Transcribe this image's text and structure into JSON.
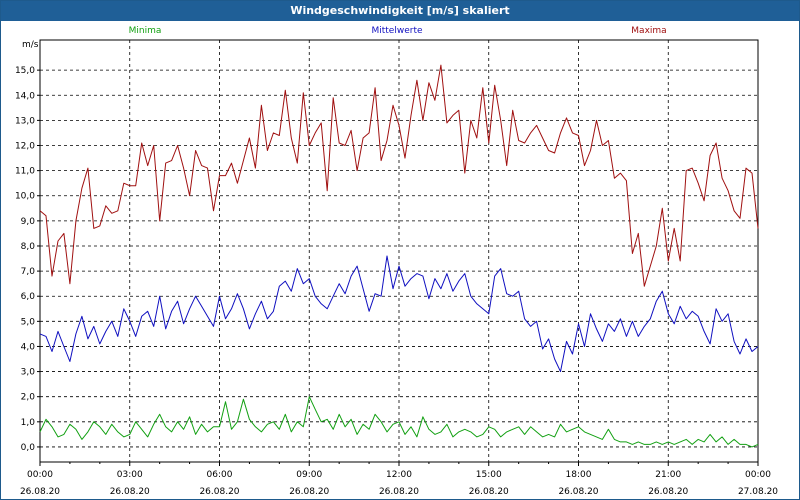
{
  "title": "Windgeschwindigkeit [m/s] skaliert",
  "chart_data": {
    "type": "line",
    "ylabel": "m/s",
    "ylim": [
      -0.6,
      16.2
    ],
    "yticks": [
      "0,0",
      "1,0",
      "2,0",
      "3,0",
      "4,0",
      "5,0",
      "6,0",
      "7,0",
      "8,0",
      "9,0",
      "10,0",
      "11,0",
      "12,0",
      "13,0",
      "14,0",
      "15,0"
    ],
    "xticks": [
      {
        "time": "00:00",
        "date": "26.08.20"
      },
      {
        "time": "03:00",
        "date": "26.08.20"
      },
      {
        "time": "06:00",
        "date": "26.08.20"
      },
      {
        "time": "09:00",
        "date": "26.08.20"
      },
      {
        "time": "12:00",
        "date": "26.08.20"
      },
      {
        "time": "15:00",
        "date": "26.08.20"
      },
      {
        "time": "18:00",
        "date": "26.08.20"
      },
      {
        "time": "21:00",
        "date": "26.08.20"
      },
      {
        "time": "00:00",
        "date": "27.08.20"
      }
    ],
    "x_hours": [
      0,
      0.2,
      0.4,
      0.6,
      0.8,
      1,
      1.2,
      1.4,
      1.6,
      1.8,
      2,
      2.2,
      2.4,
      2.6,
      2.8,
      3,
      3.2,
      3.4,
      3.6,
      3.8,
      4,
      4.2,
      4.4,
      4.6,
      4.8,
      5,
      5.2,
      5.4,
      5.6,
      5.8,
      6,
      6.2,
      6.4,
      6.6,
      6.8,
      7,
      7.2,
      7.4,
      7.6,
      7.8,
      8,
      8.2,
      8.4,
      8.6,
      8.8,
      9,
      9.2,
      9.4,
      9.6,
      9.8,
      10,
      10.2,
      10.4,
      10.6,
      10.8,
      11,
      11.2,
      11.4,
      11.6,
      11.8,
      12,
      12.2,
      12.4,
      12.6,
      12.8,
      13,
      13.2,
      13.4,
      13.6,
      13.8,
      14,
      14.2,
      14.4,
      14.6,
      14.8,
      15,
      15.2,
      15.4,
      15.6,
      15.8,
      16,
      16.2,
      16.4,
      16.6,
      16.8,
      17,
      17.2,
      17.4,
      17.6,
      17.8,
      18,
      18.2,
      18.4,
      18.6,
      18.8,
      19,
      19.2,
      19.4,
      19.6,
      19.8,
      20,
      20.2,
      20.4,
      20.6,
      20.8,
      21,
      21.2,
      21.4,
      21.6,
      21.8,
      22,
      22.2,
      22.4,
      22.6,
      22.8,
      23,
      23.2,
      23.4,
      23.6,
      23.8,
      24
    ],
    "series": [
      {
        "name": "Minima",
        "color": "#12a012",
        "values": [
          0.6,
          1.1,
          0.8,
          0.4,
          0.5,
          0.9,
          0.7,
          0.3,
          0.6,
          1.0,
          0.8,
          0.5,
          0.9,
          0.6,
          0.4,
          0.5,
          1.0,
          0.7,
          0.4,
          0.9,
          1.3,
          0.8,
          0.6,
          1.0,
          0.7,
          1.2,
          0.5,
          0.9,
          0.6,
          0.8,
          0.8,
          1.8,
          0.7,
          1.0,
          1.9,
          1.1,
          0.8,
          0.6,
          0.9,
          1.0,
          0.7,
          1.3,
          0.6,
          1.0,
          0.8,
          2.0,
          1.5,
          1.0,
          1.1,
          0.7,
          1.3,
          0.8,
          1.1,
          0.5,
          0.9,
          0.7,
          1.3,
          1.0,
          0.6,
          0.9,
          1.0,
          0.5,
          0.8,
          0.4,
          1.2,
          0.7,
          0.5,
          0.6,
          0.9,
          0.4,
          0.6,
          0.7,
          0.6,
          0.4,
          0.5,
          0.8,
          0.7,
          0.4,
          0.6,
          0.7,
          0.8,
          0.5,
          0.8,
          0.6,
          0.4,
          0.5,
          0.4,
          0.9,
          0.6,
          0.7,
          0.8,
          0.6,
          0.5,
          0.4,
          0.3,
          0.7,
          0.3,
          0.2,
          0.2,
          0.1,
          0.2,
          0.1,
          0.1,
          0.2,
          0.1,
          0.2,
          0.1,
          0.2,
          0.3,
          0.1,
          0.3,
          0.2,
          0.5,
          0.2,
          0.4,
          0.1,
          0.3,
          0.1,
          0.1,
          0.0,
          0.1
        ]
      },
      {
        "name": "Mittelwerte",
        "color": "#1010c0",
        "values": [
          4.5,
          4.4,
          3.8,
          4.6,
          4.0,
          3.4,
          4.5,
          5.2,
          4.3,
          4.8,
          4.1,
          4.6,
          5.0,
          4.4,
          5.5,
          5.0,
          4.4,
          5.2,
          5.4,
          4.8,
          6.0,
          4.7,
          5.4,
          5.8,
          4.9,
          5.5,
          6.0,
          5.6,
          5.2,
          4.8,
          6.0,
          5.1,
          5.5,
          6.1,
          5.5,
          4.7,
          5.3,
          5.8,
          5.1,
          5.4,
          6.4,
          6.6,
          6.2,
          7.1,
          6.5,
          6.7,
          6.0,
          5.7,
          5.5,
          6.0,
          6.5,
          6.1,
          6.8,
          7.2,
          6.3,
          5.4,
          6.1,
          6.0,
          7.6,
          6.3,
          7.2,
          6.4,
          6.7,
          6.9,
          6.8,
          5.9,
          6.7,
          6.3,
          6.9,
          6.2,
          6.6,
          6.9,
          6.0,
          5.7,
          5.5,
          5.3,
          6.8,
          7.1,
          6.1,
          6.0,
          6.2,
          5.1,
          4.8,
          5.0,
          3.9,
          4.3,
          3.5,
          3.0,
          4.2,
          3.7,
          4.9,
          4.0,
          5.3,
          4.7,
          4.2,
          4.9,
          4.6,
          5.1,
          4.4,
          5.0,
          4.4,
          4.8,
          5.1,
          5.8,
          6.2,
          5.3,
          4.9,
          5.6,
          5.1,
          5.4,
          5.2,
          4.6,
          4.1,
          5.5,
          5.0,
          5.3,
          4.2,
          3.7,
          4.3,
          3.8,
          4.0
        ]
      },
      {
        "name": "Maxima",
        "color": "#a01010",
        "values": [
          9.4,
          9.2,
          6.8,
          8.2,
          8.5,
          6.5,
          9.0,
          10.3,
          11.1,
          8.7,
          8.8,
          9.6,
          9.3,
          9.4,
          10.5,
          10.4,
          10.4,
          12.1,
          11.2,
          12.0,
          9.0,
          11.3,
          11.4,
          12.0,
          11.1,
          10.0,
          11.8,
          11.2,
          11.1,
          9.4,
          10.8,
          10.8,
          11.3,
          10.5,
          11.4,
          12.3,
          11.1,
          13.6,
          11.8,
          12.5,
          12.4,
          14.2,
          12.3,
          11.3,
          14.1,
          12.0,
          12.5,
          12.9,
          10.2,
          13.9,
          12.1,
          12.0,
          12.6,
          11.0,
          12.3,
          12.5,
          14.3,
          11.4,
          12.2,
          13.6,
          12.8,
          11.5,
          13.2,
          14.6,
          13.0,
          14.5,
          13.8,
          15.2,
          12.9,
          13.2,
          13.4,
          10.9,
          13.0,
          12.3,
          14.3,
          12.1,
          14.4,
          13.0,
          11.2,
          13.4,
          12.2,
          12.1,
          12.5,
          12.8,
          12.3,
          11.8,
          11.7,
          12.5,
          13.1,
          12.5,
          12.4,
          11.2,
          11.8,
          13.0,
          12.0,
          12.2,
          10.7,
          10.9,
          10.6,
          7.7,
          8.5,
          6.4,
          7.2,
          8.0,
          9.5,
          7.4,
          8.7,
          7.4,
          11.0,
          11.1,
          10.5,
          9.8,
          11.6,
          12.1,
          10.7,
          10.2,
          9.4,
          9.1,
          11.1,
          10.9,
          8.7
        ]
      }
    ],
    "grid": true,
    "legend": "top"
  }
}
